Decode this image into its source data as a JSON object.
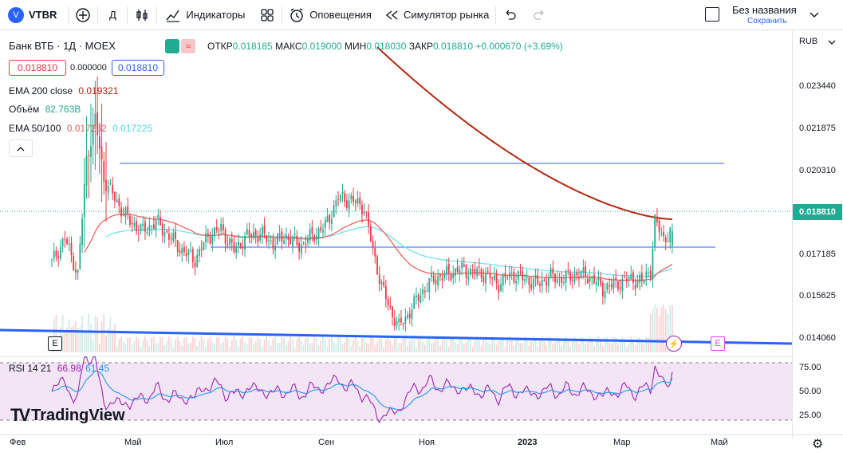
{
  "toolbar": {
    "avatar_letter": "V",
    "symbol": "VTBR",
    "add_label": "+",
    "interval": "Д",
    "indicators": "Индикаторы",
    "alerts": "Оповещения",
    "replay": "Симулятор рынка",
    "layout_name": "Без названия",
    "layout_save": "Сохранить"
  },
  "legend": {
    "title": "Банк ВТБ · 1Д · MOEX",
    "o_key": "ОТКР",
    "o_val": "0.018185",
    "h_key": "МАКС",
    "h_val": "0.019000",
    "l_key": "МИН",
    "l_val": "0.018030",
    "c_key": "ЗАКР",
    "c_val": "0.018810",
    "change": "+0.000670 (+3.69%)",
    "sell": "0.018810",
    "spread": "0.000000",
    "buy": "0.018810",
    "ema200_name": "EMA 200 close",
    "ema200_val": "0.019321",
    "vol_name": "Объём",
    "vol_val": "82.763B",
    "ema50_name": "EMA 50/100",
    "ema50_val": "0.017232",
    "ema100_val": "0.017225",
    "collapse": "^",
    "rsi_name": "RSI 14 21",
    "rsi_val1": "66.98",
    "rsi_val2": "61.45",
    "brand": "TradingView"
  },
  "price_scale": {
    "currency": "RUB",
    "current": "0.018810",
    "ticks": [
      "0.023440",
      "0.021875",
      "0.020310",
      "0.017185",
      "0.015625",
      "0.014060"
    ],
    "rsi_ticks": [
      "75.00",
      "50.00",
      "25.00"
    ]
  },
  "markers": {
    "e1": "E",
    "e2": "E",
    "bolt": "⚡"
  },
  "time_scale": [
    "Фев",
    "Май",
    "Июл",
    "Сен",
    "Ноя",
    "2023",
    "Мар",
    "Май"
  ],
  "colors": {
    "up": "#22ab94",
    "down": "#f23645",
    "ema200": "#b2280f",
    "ema50": "#f0635c",
    "ema100": "#6fe4f0",
    "trendline": "#2962ff",
    "rsi": "#9c27b0",
    "rsi_ma": "#2196f3",
    "rsi_band": "#f3e5f5"
  },
  "chart_data": {
    "type": "candlestick",
    "title": "Банк ВТБ · 1Д · MOEX",
    "ylim": [
      0.0138,
      0.0258
    ],
    "x_labels": [
      "Фев",
      "Май",
      "Июл",
      "Сен",
      "Ноя",
      "2023",
      "Мар",
      "Май"
    ],
    "price_points": [
      [
        0,
        0.0175
      ],
      [
        6,
        0.0185
      ],
      [
        12,
        0.017
      ],
      [
        16,
        0.0218
      ],
      [
        20,
        0.0235
      ],
      [
        24,
        0.021
      ],
      [
        30,
        0.02
      ],
      [
        36,
        0.0192
      ],
      [
        42,
        0.0188
      ],
      [
        48,
        0.0192
      ],
      [
        54,
        0.0186
      ],
      [
        60,
        0.018
      ],
      [
        66,
        0.0176
      ],
      [
        72,
        0.0186
      ],
      [
        78,
        0.0189
      ],
      [
        84,
        0.018
      ],
      [
        90,
        0.0186
      ],
      [
        96,
        0.0187
      ],
      [
        102,
        0.0183
      ],
      [
        108,
        0.0186
      ],
      [
        114,
        0.0182
      ],
      [
        120,
        0.0186
      ],
      [
        126,
        0.019
      ],
      [
        132,
        0.0202
      ],
      [
        138,
        0.0201
      ],
      [
        144,
        0.0198
      ],
      [
        148,
        0.018
      ],
      [
        152,
        0.0165
      ],
      [
        156,
        0.0155
      ],
      [
        160,
        0.0148
      ],
      [
        164,
        0.0153
      ],
      [
        170,
        0.0162
      ],
      [
        176,
        0.0168
      ],
      [
        182,
        0.017
      ],
      [
        188,
        0.0172
      ],
      [
        194,
        0.0171
      ],
      [
        200,
        0.017
      ],
      [
        206,
        0.0166
      ],
      [
        212,
        0.017
      ],
      [
        218,
        0.0168
      ],
      [
        224,
        0.0166
      ],
      [
        230,
        0.0169
      ],
      [
        236,
        0.0168
      ],
      [
        242,
        0.017
      ],
      [
        248,
        0.0169
      ],
      [
        254,
        0.0164
      ],
      [
        260,
        0.0166
      ],
      [
        266,
        0.0168
      ],
      [
        272,
        0.0167
      ],
      [
        276,
        0.0172
      ],
      [
        278,
        0.0192
      ],
      [
        282,
        0.0185
      ],
      [
        286,
        0.0188
      ]
    ],
    "series": [
      {
        "name": "EMA 200 close",
        "last": 0.019321
      },
      {
        "name": "EMA 50",
        "last": 0.017232
      },
      {
        "name": "EMA 100",
        "last": 0.017225
      }
    ],
    "rsi": {
      "name": "RSI 14 21",
      "values": [
        66.98,
        61.45
      ],
      "levels": [
        75,
        50,
        25
      ]
    }
  }
}
